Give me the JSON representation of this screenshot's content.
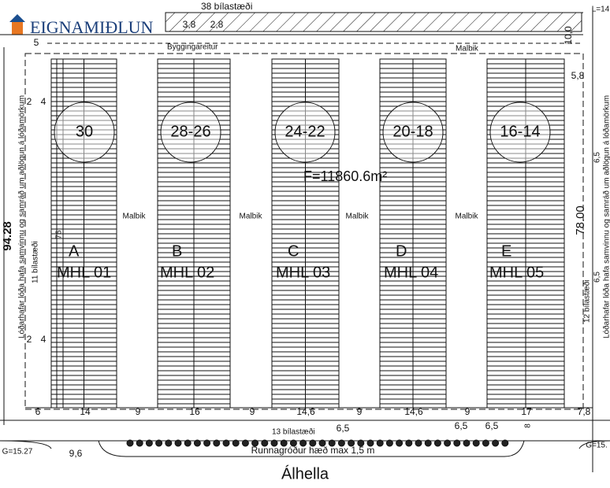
{
  "logo": "EIGNAMIÐLUN",
  "street": "Álhella",
  "area": "F=11860.6m²",
  "building_area": "Byggingareitur",
  "top_paving": "Malbik",
  "top_parking": "38 bílastæði",
  "left_parking": "11 bílastæði",
  "right_parking": "12 bílastæði",
  "bottom_parking": "13 bílastæði",
  "hedge": "Runnagróður hæð max 1,5 m",
  "left_note": "Lóðarhafar lóða hafa samvinnu og samráð um aðlögun á lóðamörkum",
  "right_note": "Lóðarhafar lóða hafa samvinnu og samráð um aðlögun á lóðamörkum",
  "buildings": [
    {
      "numbers": "30",
      "letter": "A",
      "label": "MHL 01",
      "paving": "Malbik"
    },
    {
      "numbers": "28-26",
      "letter": "B",
      "label": "MHL 02",
      "paving": "Malbik"
    },
    {
      "numbers": "24-22",
      "letter": "C",
      "label": "MHL 03",
      "paving": "Malbik"
    },
    {
      "numbers": "20-18",
      "letter": "D",
      "label": "MHL 04",
      "paving": "Malbik"
    },
    {
      "numbers": "16-14",
      "letter": "E",
      "label": "MHL 05"
    }
  ],
  "dims_top": [
    "3,8",
    "2,8",
    "10,0",
    "L=14",
    "5",
    "5,8"
  ],
  "dims_left": [
    "94.28",
    "2",
    "4",
    "76",
    "2",
    "4"
  ],
  "dims_right": [
    "78.00",
    "6,5",
    "6,5"
  ],
  "dims_bottom": [
    "6",
    "14",
    "9",
    "16",
    "9",
    "14,6",
    "9",
    "14,6",
    "9",
    "17",
    "7,8"
  ],
  "dims_lower": [
    "6,5",
    "6,5",
    "6,5",
    "8",
    "9,6",
    "G=15.27",
    "G=15."
  ]
}
